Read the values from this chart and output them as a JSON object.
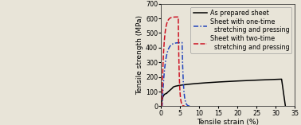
{
  "xlabel": "Tensile strain (%)",
  "ylabel": "Tensile strength (MPa)",
  "xlim": [
    0,
    35
  ],
  "ylim": [
    0,
    700
  ],
  "xticks": [
    0,
    5,
    10,
    15,
    20,
    25,
    30,
    35
  ],
  "yticks": [
    0,
    100,
    200,
    300,
    400,
    500,
    600,
    700
  ],
  "legend_entries": [
    "As prepared sheet",
    "Sheet with one-time\n  stretching and pressing",
    "Sheet with two-time\n  stretching and pressing"
  ],
  "line_colors": [
    "#000000",
    "#2244bb",
    "#cc1122"
  ],
  "bg_color": "#e8e4d8",
  "legend_fontsize": 5.8,
  "axis_fontsize": 6.5,
  "tick_fontsize": 5.8,
  "fig_width": 3.78,
  "fig_height": 1.57,
  "dpi": 100
}
